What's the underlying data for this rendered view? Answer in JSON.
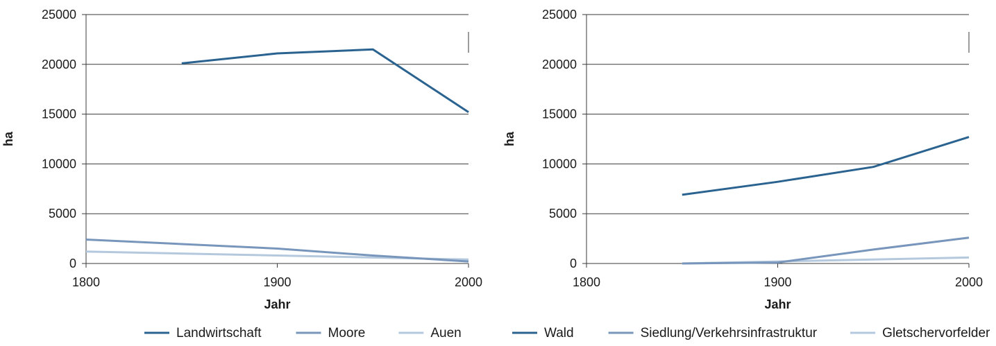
{
  "chart_data": [
    {
      "type": "line",
      "title": "",
      "xlabel": "Jahr",
      "ylabel": "ha",
      "xlim": [
        1800,
        2000
      ],
      "ylim": [
        0,
        25000
      ],
      "x_ticks": [
        "1800",
        "1900",
        "2000"
      ],
      "y_ticks": [
        "0",
        "5000",
        "10000",
        "15000",
        "20000",
        "25000"
      ],
      "grid": true,
      "legend_position": "bottom",
      "series": [
        {
          "name": "Landwirtschaft",
          "color": "#2b6390",
          "x": [
            1850,
            1900,
            1950,
            2000
          ],
          "y": [
            20100,
            21100,
            21500,
            15200
          ]
        },
        {
          "name": "Moore",
          "color": "#7896bb",
          "x": [
            1800,
            1900,
            1950,
            2000
          ],
          "y": [
            2400,
            1500,
            800,
            200
          ]
        },
        {
          "name": "Auen",
          "color": "#b4c8de",
          "x": [
            1800,
            1900,
            1950,
            2000
          ],
          "y": [
            1200,
            800,
            600,
            400
          ]
        }
      ]
    },
    {
      "type": "line",
      "title": "",
      "xlabel": "Jahr",
      "ylabel": "ha",
      "xlim": [
        1800,
        2000
      ],
      "ylim": [
        0,
        25000
      ],
      "x_ticks": [
        "1800",
        "1900",
        "2000"
      ],
      "y_ticks": [
        "0",
        "5000",
        "10000",
        "15000",
        "20000",
        "25000"
      ],
      "grid": true,
      "legend_position": "bottom",
      "series": [
        {
          "name": "Wald",
          "color": "#2b6390",
          "x": [
            1850,
            1900,
            1950,
            2000
          ],
          "y": [
            6900,
            8200,
            9700,
            12700
          ]
        },
        {
          "name": "Siedlung/Verkehrsinfrastruktur",
          "color": "#7896bb",
          "x": [
            1850,
            1900,
            1950,
            2000
          ],
          "y": [
            0,
            100,
            1400,
            2600
          ]
        },
        {
          "name": "Gletschervorfelder",
          "color": "#b4c8de",
          "x": [
            1850,
            1900,
            1950,
            2000
          ],
          "y": [
            0,
            200,
            400,
            600
          ]
        }
      ]
    }
  ]
}
